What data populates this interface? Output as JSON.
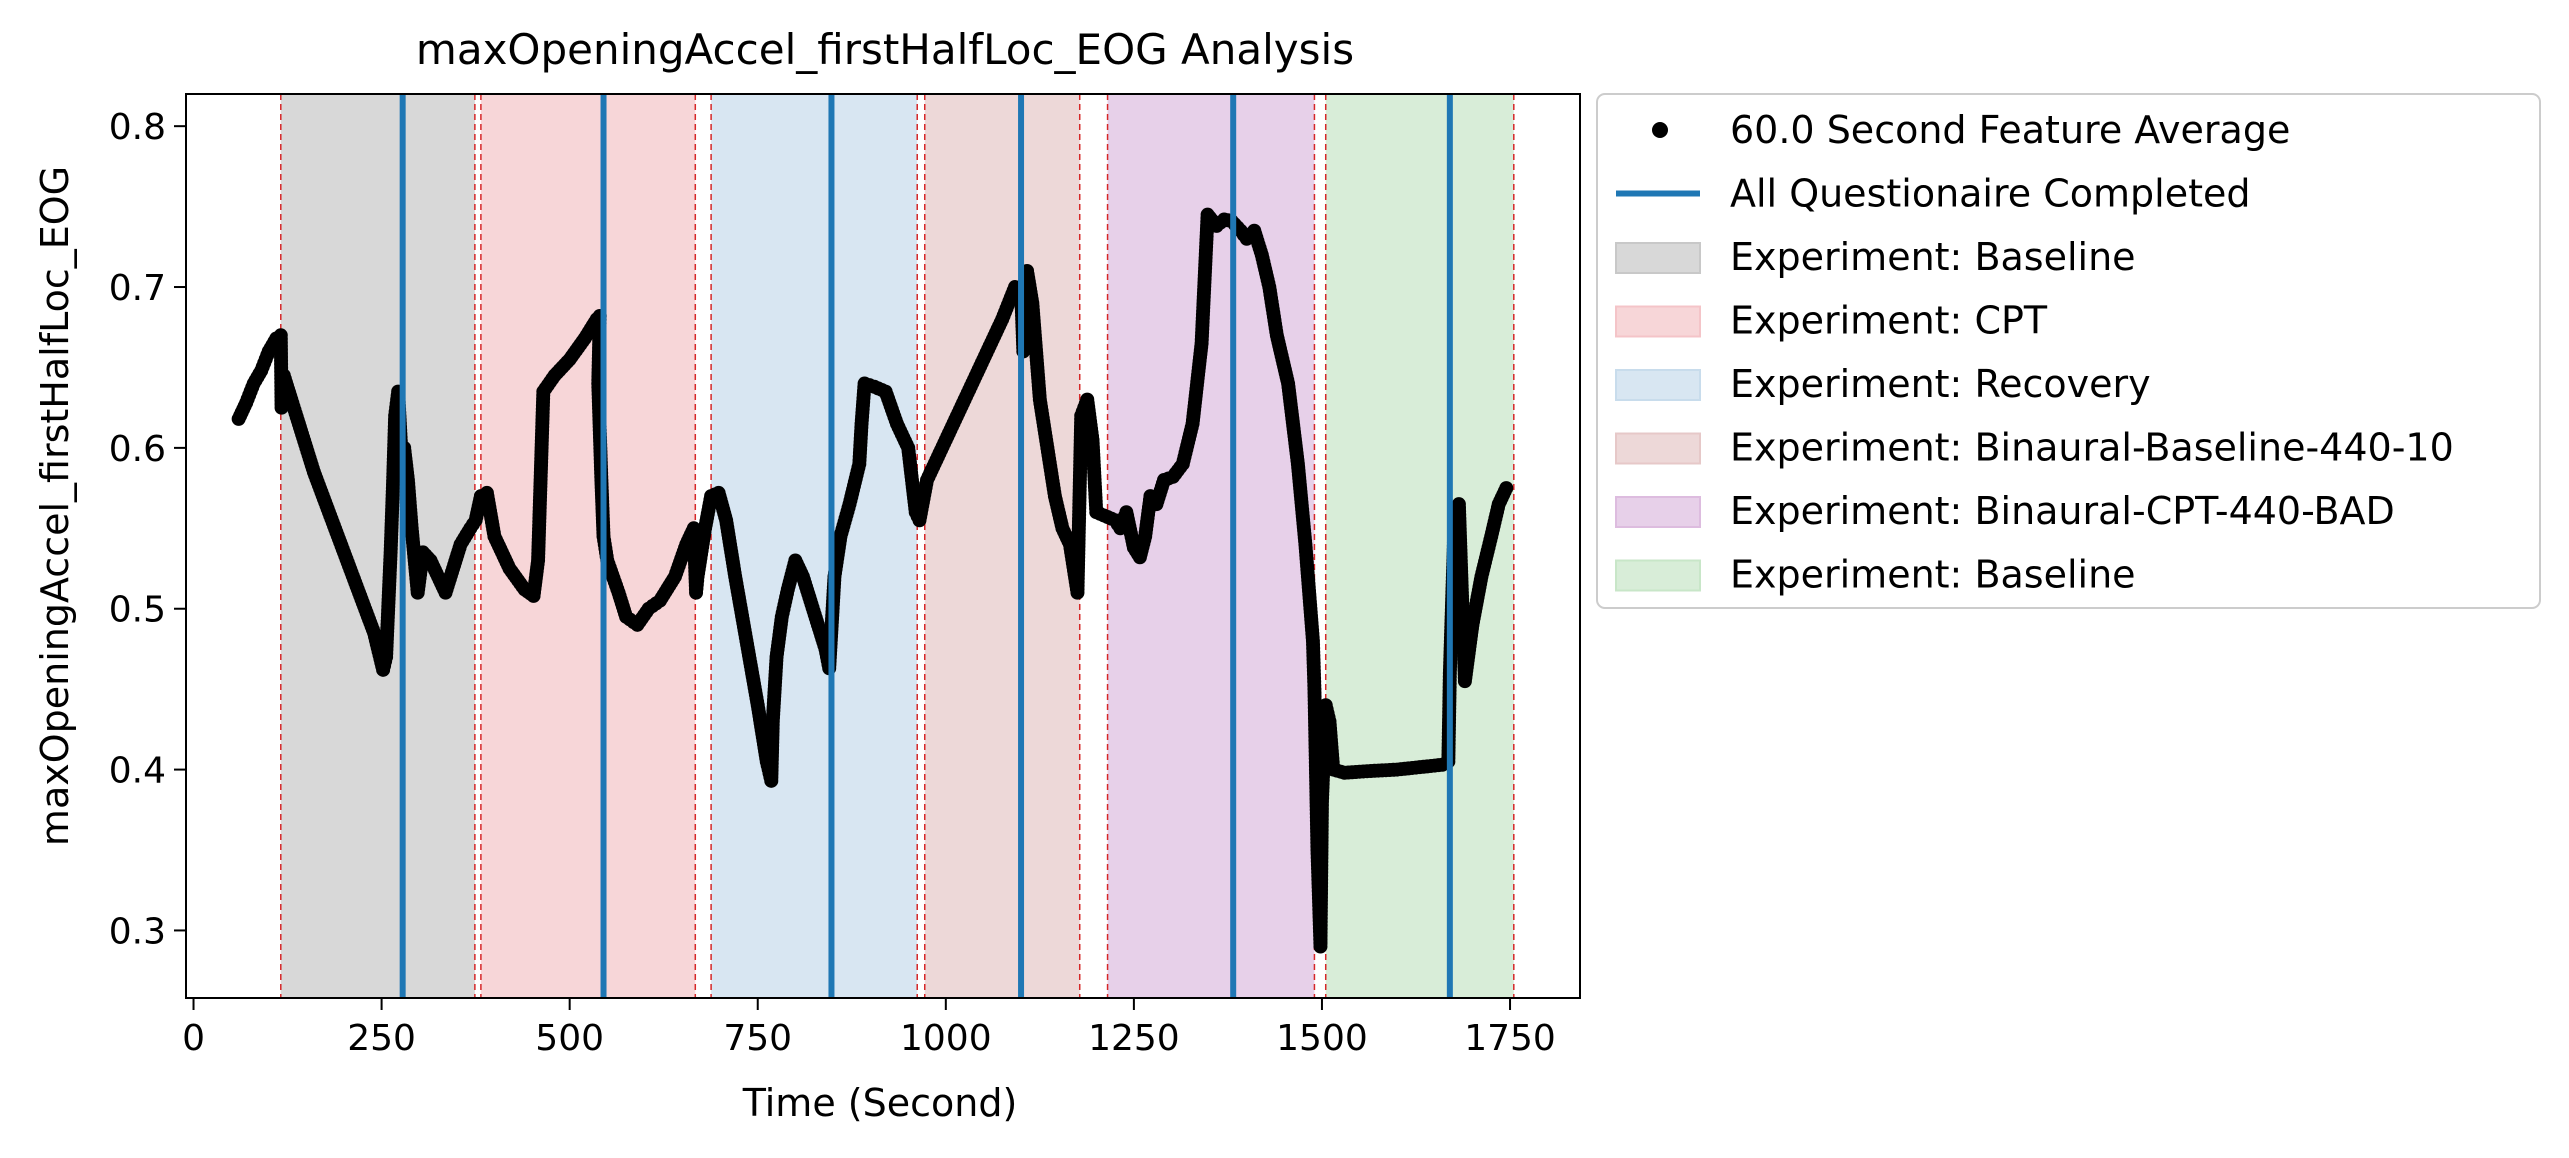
{
  "chart_data": {
    "type": "scatter",
    "title": "maxOpeningAccel_firstHalfLoc_EOG Analysis",
    "xlabel": "Time (Second)",
    "ylabel": "maxOpeningAccel_firstHalfLoc_EOG",
    "xlim": [
      -10,
      1843
    ],
    "ylim": [
      0.258,
      0.82
    ],
    "xticks": [
      0,
      250,
      500,
      750,
      1000,
      1250,
      1500,
      1750
    ],
    "yticks": [
      0.3,
      0.4,
      0.5,
      0.6,
      0.7,
      0.8
    ],
    "xtick_labels": [
      "0",
      "250",
      "500",
      "750",
      "1000",
      "1250",
      "1500",
      "1750"
    ],
    "ytick_labels": [
      "0.3",
      "0.4",
      "0.5",
      "0.6",
      "0.7",
      "0.8"
    ],
    "grid": false,
    "legend_position": "outside-upper-right",
    "series": [
      {
        "name": "60.0 Second Feature Average",
        "style": "markers",
        "color": "#000000",
        "points": [
          [
            60,
            0.618
          ],
          [
            70,
            0.628
          ],
          [
            80,
            0.64
          ],
          [
            90,
            0.648
          ],
          [
            100,
            0.66
          ],
          [
            110,
            0.668
          ],
          [
            116,
            0.67
          ],
          [
            117,
            0.625
          ],
          [
            120,
            0.645
          ],
          [
            140,
            0.615
          ],
          [
            160,
            0.585
          ],
          [
            180,
            0.56
          ],
          [
            200,
            0.535
          ],
          [
            220,
            0.51
          ],
          [
            240,
            0.485
          ],
          [
            252,
            0.462
          ],
          [
            256,
            0.47
          ],
          [
            262,
            0.535
          ],
          [
            265,
            0.575
          ],
          [
            268,
            0.62
          ],
          [
            272,
            0.635
          ],
          [
            276,
            0.6
          ],
          [
            280,
            0.6
          ],
          [
            285,
            0.58
          ],
          [
            290,
            0.55
          ],
          [
            298,
            0.51
          ],
          [
            305,
            0.535
          ],
          [
            315,
            0.53
          ],
          [
            325,
            0.52
          ],
          [
            335,
            0.51
          ],
          [
            345,
            0.525
          ],
          [
            355,
            0.54
          ],
          [
            368,
            0.55
          ],
          [
            375,
            0.555
          ],
          [
            382,
            0.57
          ],
          [
            390,
            0.572
          ],
          [
            400,
            0.545
          ],
          [
            420,
            0.525
          ],
          [
            440,
            0.512
          ],
          [
            452,
            0.508
          ],
          [
            458,
            0.53
          ],
          [
            465,
            0.635
          ],
          [
            480,
            0.645
          ],
          [
            500,
            0.655
          ],
          [
            520,
            0.668
          ],
          [
            536,
            0.68
          ],
          [
            540,
            0.682
          ],
          [
            538,
            0.64
          ],
          [
            542,
            0.582
          ],
          [
            545,
            0.545
          ],
          [
            550,
            0.53
          ],
          [
            565,
            0.51
          ],
          [
            575,
            0.495
          ],
          [
            590,
            0.49
          ],
          [
            605,
            0.5
          ],
          [
            620,
            0.505
          ],
          [
            640,
            0.52
          ],
          [
            655,
            0.54
          ],
          [
            665,
            0.55
          ],
          [
            668,
            0.51
          ],
          [
            670,
            0.52
          ],
          [
            680,
            0.55
          ],
          [
            688,
            0.57
          ],
          [
            698,
            0.572
          ],
          [
            708,
            0.555
          ],
          [
            720,
            0.52
          ],
          [
            735,
            0.48
          ],
          [
            750,
            0.44
          ],
          [
            762,
            0.405
          ],
          [
            768,
            0.393
          ],
          [
            770,
            0.43
          ],
          [
            775,
            0.47
          ],
          [
            782,
            0.495
          ],
          [
            790,
            0.512
          ],
          [
            800,
            0.53
          ],
          [
            810,
            0.52
          ],
          [
            820,
            0.505
          ],
          [
            830,
            0.49
          ],
          [
            840,
            0.475
          ],
          [
            845,
            0.463
          ],
          [
            852,
            0.52
          ],
          [
            860,
            0.545
          ],
          [
            872,
            0.565
          ],
          [
            885,
            0.59
          ],
          [
            888,
            0.615
          ],
          [
            892,
            0.64
          ],
          [
            905,
            0.638
          ],
          [
            920,
            0.635
          ],
          [
            935,
            0.615
          ],
          [
            950,
            0.6
          ],
          [
            960,
            0.56
          ],
          [
            965,
            0.555
          ],
          [
            975,
            0.58
          ],
          [
            1000,
            0.605
          ],
          [
            1025,
            0.63
          ],
          [
            1050,
            0.655
          ],
          [
            1075,
            0.68
          ],
          [
            1092,
            0.7
          ],
          [
            1100,
            0.7
          ],
          [
            1103,
            0.66
          ],
          [
            1108,
            0.71
          ],
          [
            1115,
            0.69
          ],
          [
            1125,
            0.63
          ],
          [
            1135,
            0.6
          ],
          [
            1145,
            0.57
          ],
          [
            1155,
            0.55
          ],
          [
            1165,
            0.54
          ],
          [
            1175,
            0.51
          ],
          [
            1180,
            0.62
          ],
          [
            1188,
            0.63
          ],
          [
            1195,
            0.605
          ],
          [
            1200,
            0.56
          ],
          [
            1210,
            0.558
          ],
          [
            1225,
            0.555
          ],
          [
            1232,
            0.55
          ],
          [
            1240,
            0.56
          ],
          [
            1250,
            0.538
          ],
          [
            1258,
            0.532
          ],
          [
            1265,
            0.545
          ],
          [
            1272,
            0.57
          ],
          [
            1280,
            0.565
          ],
          [
            1290,
            0.58
          ],
          [
            1302,
            0.582
          ],
          [
            1315,
            0.59
          ],
          [
            1328,
            0.615
          ],
          [
            1340,
            0.665
          ],
          [
            1348,
            0.745
          ],
          [
            1360,
            0.738
          ],
          [
            1370,
            0.742
          ],
          [
            1380,
            0.741
          ],
          [
            1392,
            0.735
          ],
          [
            1400,
            0.73
          ],
          [
            1410,
            0.735
          ],
          [
            1420,
            0.72
          ],
          [
            1430,
            0.7
          ],
          [
            1440,
            0.67
          ],
          [
            1455,
            0.64
          ],
          [
            1468,
            0.59
          ],
          [
            1478,
            0.54
          ],
          [
            1488,
            0.48
          ],
          [
            1490,
            0.45
          ],
          [
            1492,
            0.4
          ],
          [
            1494,
            0.35
          ],
          [
            1496,
            0.32
          ],
          [
            1498,
            0.29
          ],
          [
            1500,
            0.38
          ],
          [
            1505,
            0.44
          ],
          [
            1510,
            0.43
          ],
          [
            1515,
            0.4
          ],
          [
            1530,
            0.398
          ],
          [
            1560,
            0.399
          ],
          [
            1600,
            0.4
          ],
          [
            1640,
            0.402
          ],
          [
            1660,
            0.403
          ],
          [
            1668,
            0.405
          ],
          [
            1670,
            0.46
          ],
          [
            1676,
            0.55
          ],
          [
            1682,
            0.565
          ],
          [
            1690,
            0.455
          ],
          [
            1700,
            0.49
          ],
          [
            1712,
            0.52
          ],
          [
            1725,
            0.545
          ],
          [
            1735,
            0.565
          ],
          [
            1745,
            0.575
          ]
        ]
      },
      {
        "name": "All Questionaire Completed",
        "style": "vlines",
        "color": "#1f77b4",
        "x": [
          278,
          545,
          848,
          1100,
          1382,
          1670
        ]
      }
    ],
    "experiment_bands": [
      {
        "name": "Experiment: Baseline",
        "x0": 116,
        "x1": 374,
        "color": "#c8c8c8"
      },
      {
        "name": "Experiment: CPT",
        "x0": 382,
        "x1": 667,
        "color": "#f4c4c8"
      },
      {
        "name": "Experiment: Recovery",
        "x0": 688,
        "x1": 962,
        "color": "#c8dcec"
      },
      {
        "name": "Experiment: Binaural-Baseline-440-10",
        "x0": 972,
        "x1": 1178,
        "color": "#e6c8c8"
      },
      {
        "name": "Experiment: Binaural-CPT-440-BAD",
        "x0": 1215,
        "x1": 1490,
        "color": "#ddbcdf"
      },
      {
        "name": "Experiment: Baseline",
        "x0": 1505,
        "x1": 1755,
        "color": "#c8e6c8"
      }
    ],
    "red_dashed_lines_x": [
      116,
      374,
      382,
      667,
      688,
      962,
      972,
      1178,
      1215,
      1490,
      1505,
      1755
    ]
  }
}
